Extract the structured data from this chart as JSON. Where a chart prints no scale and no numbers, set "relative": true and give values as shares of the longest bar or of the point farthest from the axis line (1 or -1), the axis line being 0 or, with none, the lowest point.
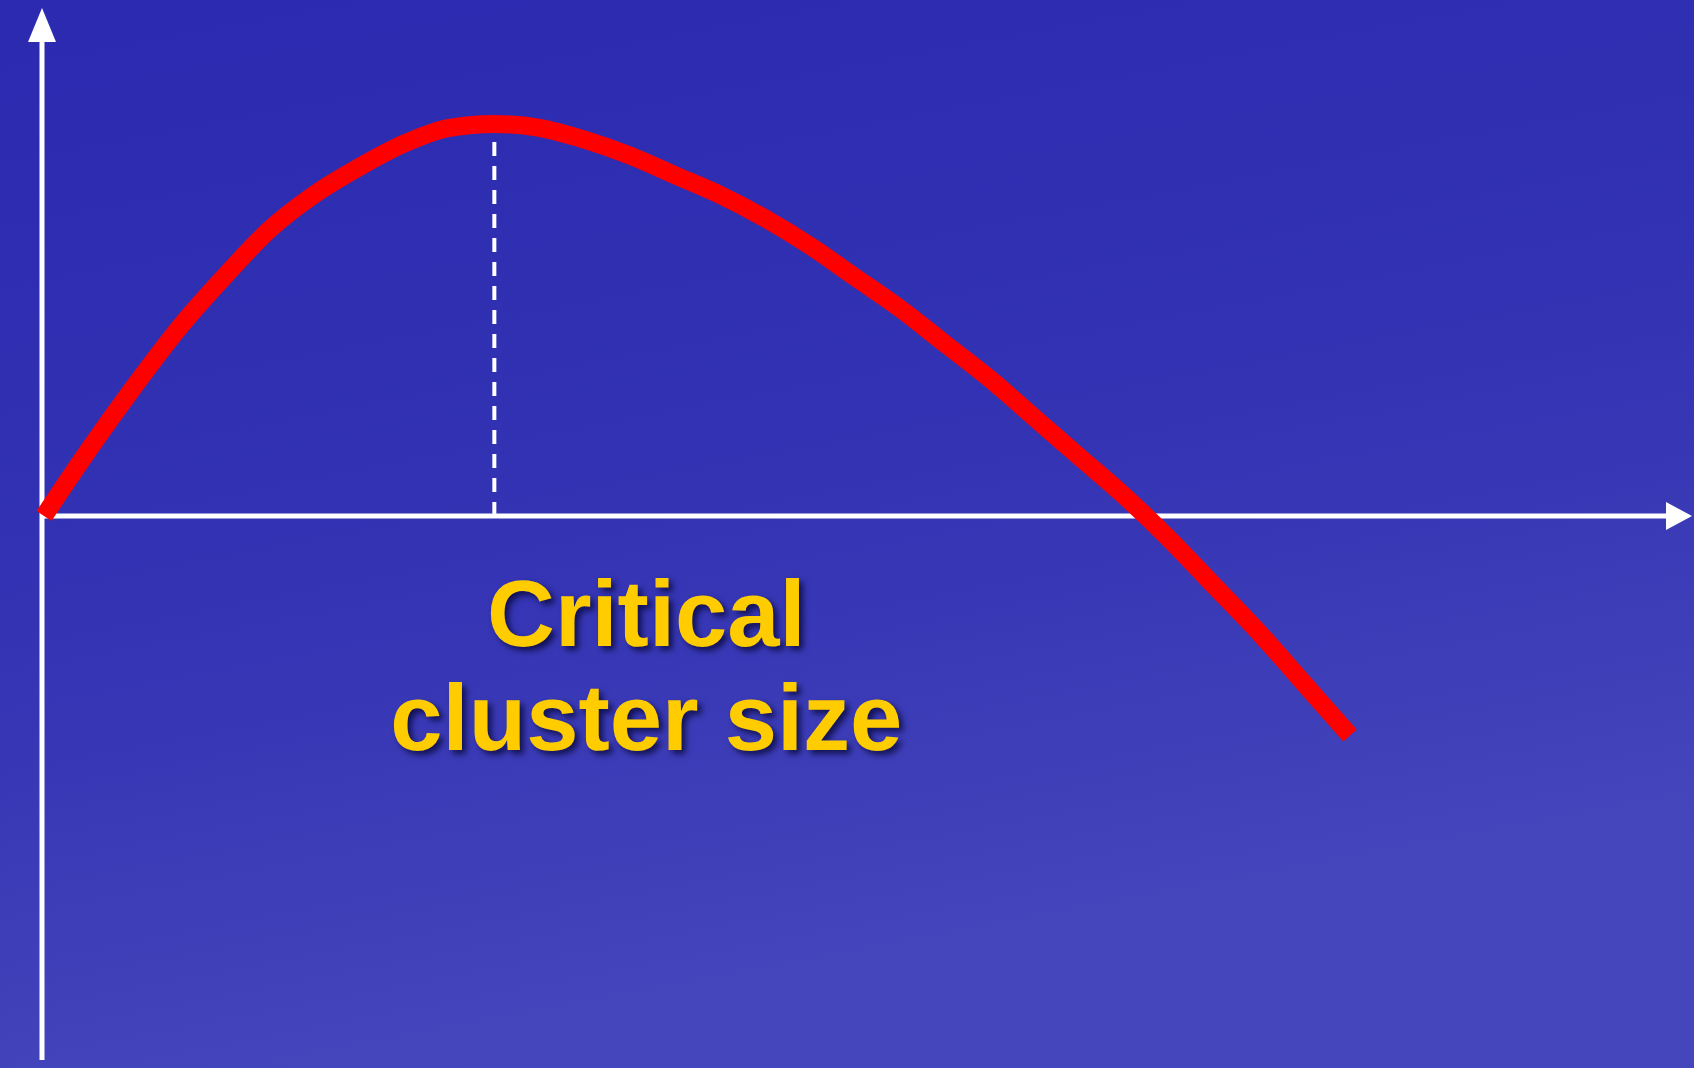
{
  "chart_data": {
    "type": "line",
    "relative": true,
    "line_style": "solid",
    "categories": [
      null,
      null,
      null,
      null,
      null,
      null,
      null,
      null,
      null,
      null,
      null,
      null,
      null,
      null,
      null,
      null,
      null,
      null,
      null,
      null,
      null,
      null,
      null,
      null,
      null,
      null,
      null,
      null,
      null,
      null
    ],
    "series": [
      {
        "color": "#ff0000",
        "values": [
          0,
          0.17,
          0.33,
          0.48,
          0.61,
          0.73,
          0.82,
          0.89,
          0.95,
          0.99,
          1,
          0.99,
          0.96,
          0.92,
          0.87,
          0.82,
          0.76,
          0.69,
          0.61,
          0.53,
          0.44,
          0.35,
          0.25,
          0.15,
          0.05,
          -0.06,
          -0.18,
          -0.3,
          -0.43,
          -0.56
        ]
      }
    ],
    "annotations": [
      "Critical cluster size"
    ]
  }
}
